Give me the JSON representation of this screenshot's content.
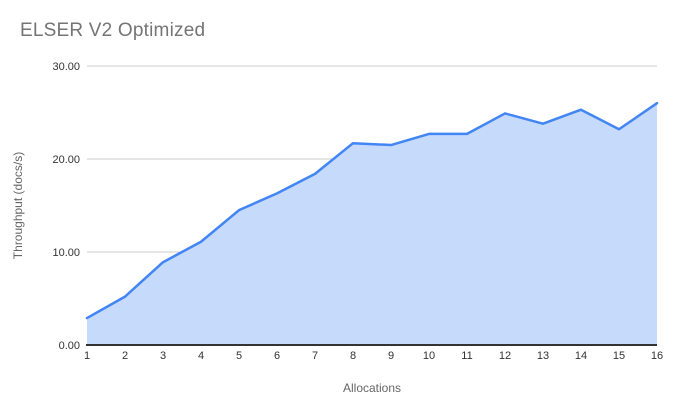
{
  "chart_data": {
    "type": "area",
    "title": "ELSER V2 Optimized",
    "xlabel": "Allocations",
    "ylabel": "Throughput (docs/s)",
    "x": [
      1,
      2,
      3,
      4,
      5,
      6,
      7,
      8,
      9,
      10,
      11,
      12,
      13,
      14,
      15,
      16
    ],
    "x_tick_labels": [
      "1",
      "2",
      "3",
      "4",
      "5",
      "6",
      "7",
      "8",
      "9",
      "10",
      "11",
      "12",
      "13",
      "14",
      "15",
      "16"
    ],
    "values": [
      2.9,
      5.2,
      8.9,
      11.1,
      14.5,
      16.3,
      18.4,
      21.7,
      21.5,
      22.7,
      22.7,
      24.9,
      23.8,
      25.3,
      23.2,
      26.0
    ],
    "ylim": [
      0,
      30
    ],
    "yticks": [
      0,
      10,
      20,
      30
    ],
    "ytick_labels": [
      "0.00",
      "10.00",
      "20.00",
      "30.00"
    ],
    "grid": true,
    "legend": false,
    "colors": {
      "line": "#4285f4",
      "fill": "#c6dafb",
      "grid": "#cccccc",
      "axis": "#333333",
      "tick": "#333333",
      "axis_title": "#666666",
      "title": "#757575",
      "background": "#ffffff"
    }
  }
}
